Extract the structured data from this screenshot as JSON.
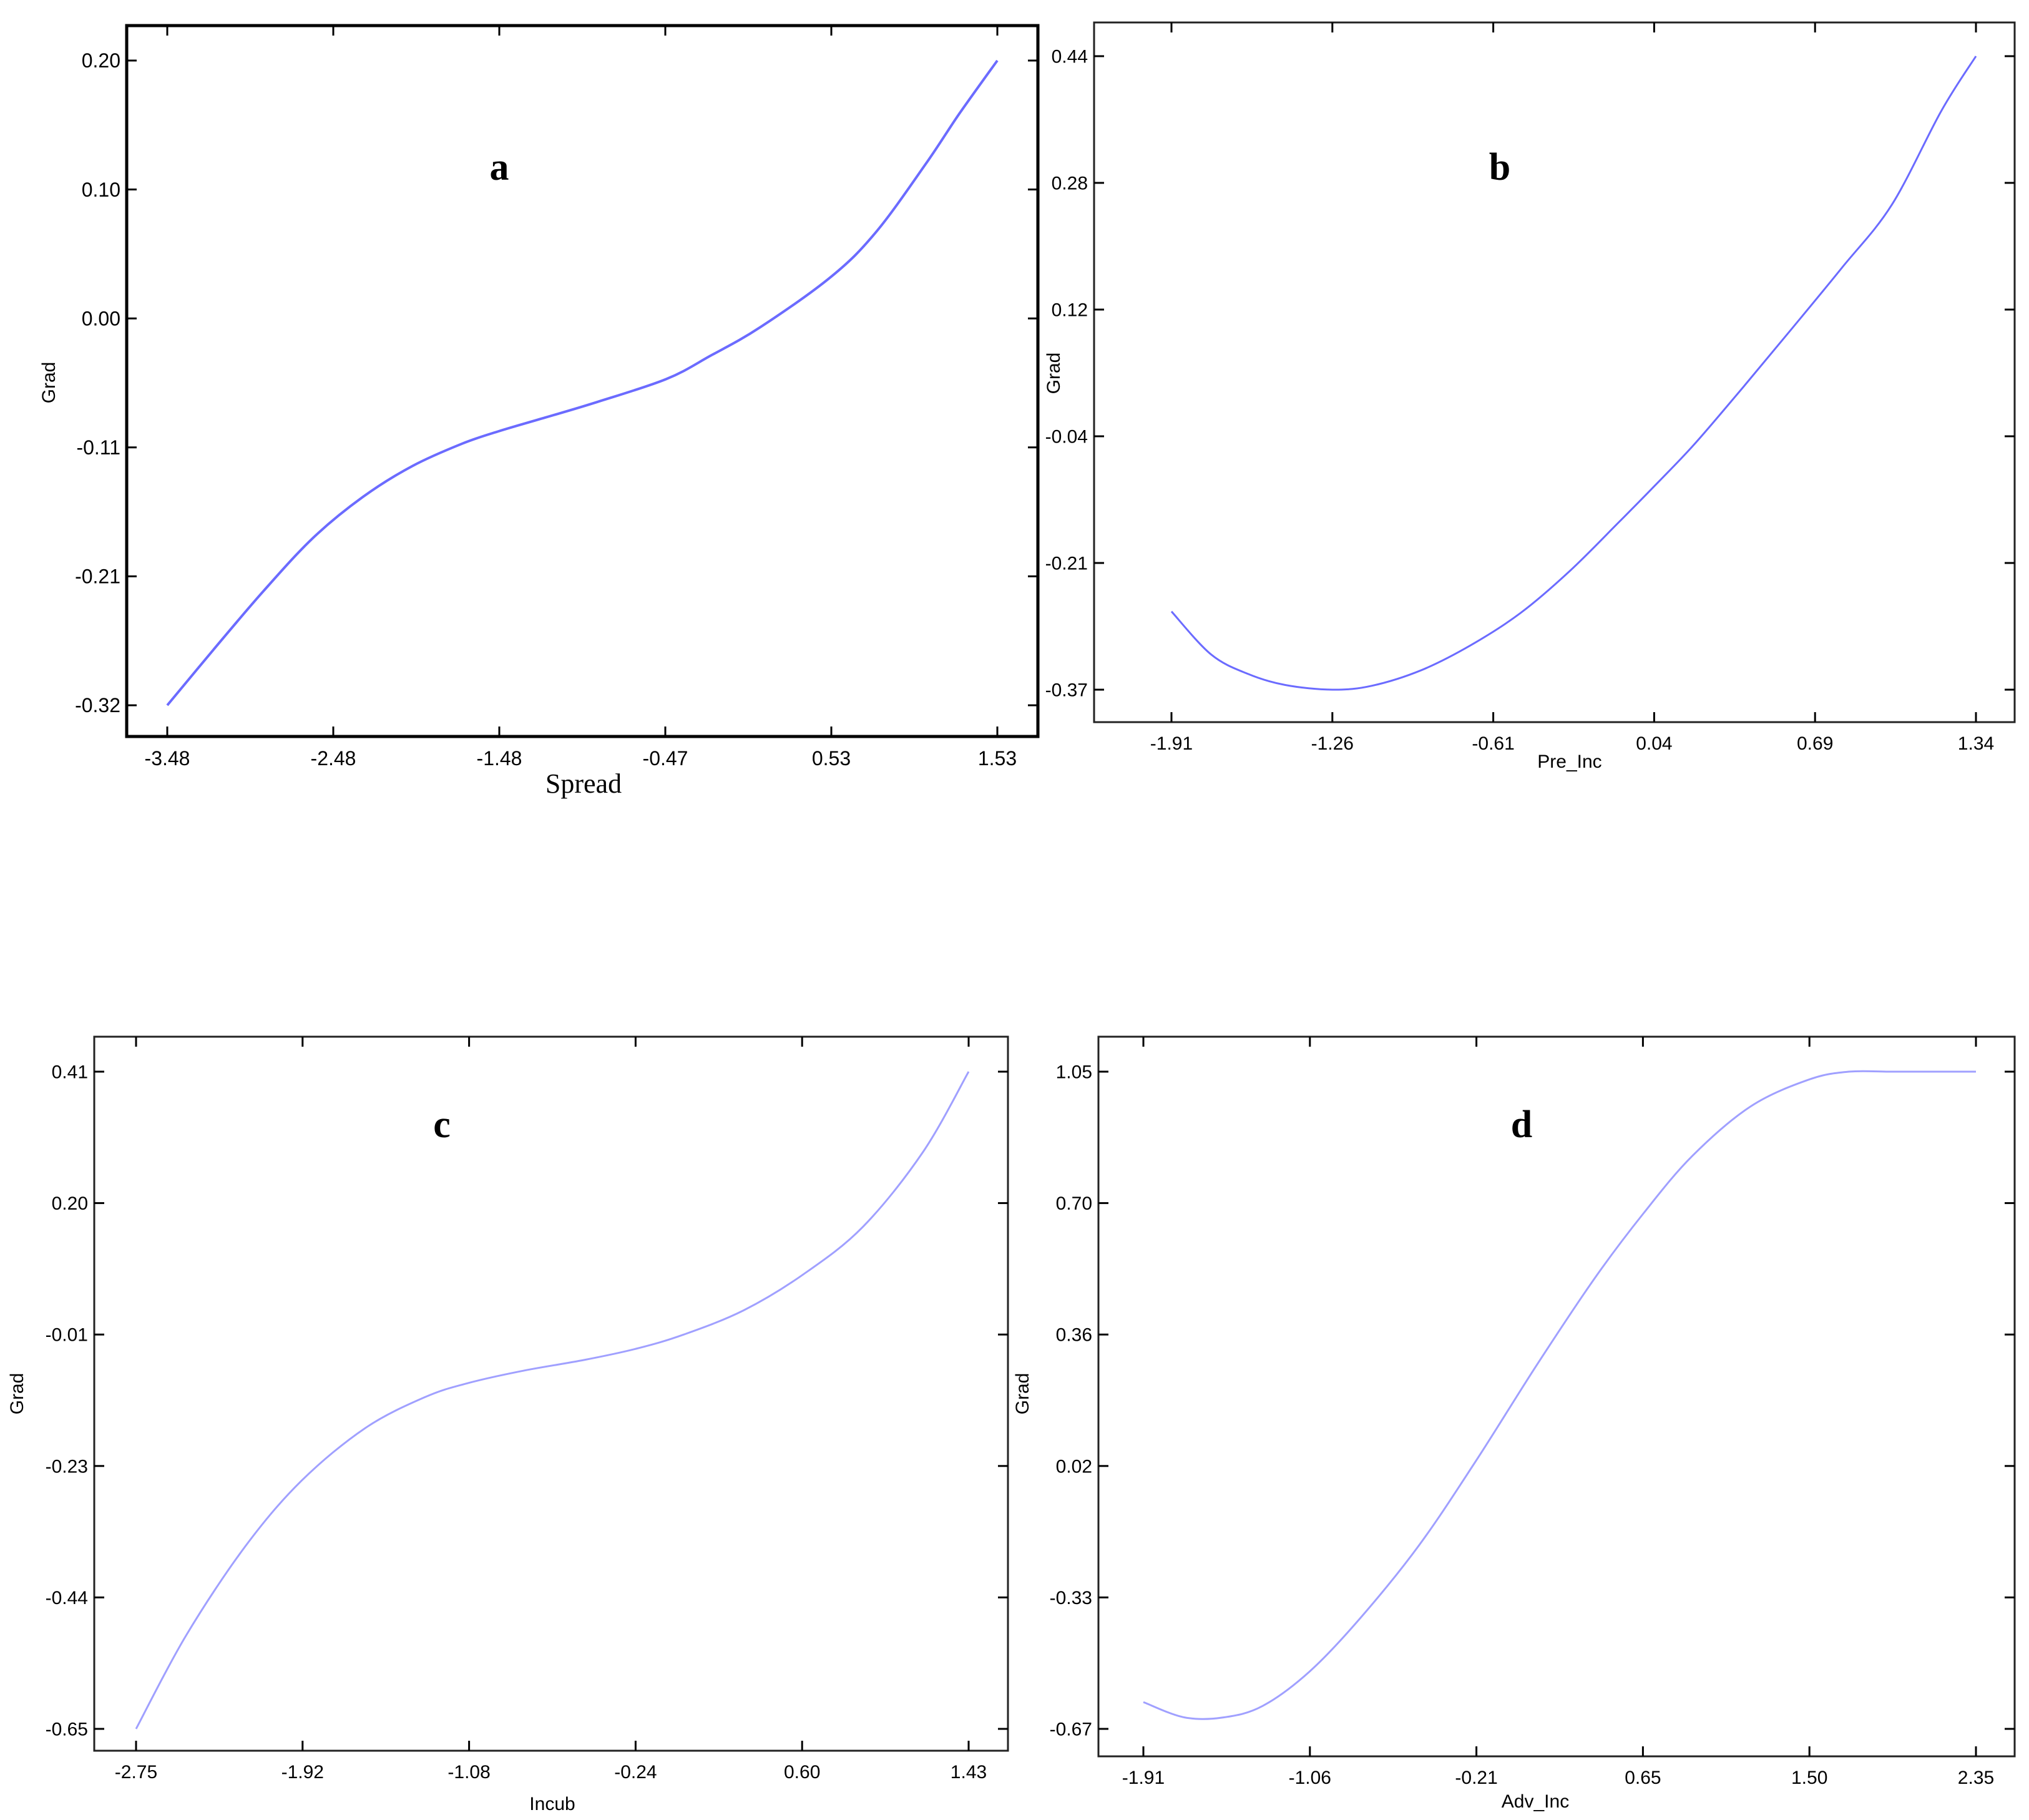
{
  "chart_data": [
    {
      "type": "line",
      "panel_label": "a",
      "xlabel": "Spread",
      "ylabel": "Grad",
      "x_ticks": [
        "-3.48",
        "-2.48",
        "-1.48",
        "-0.47",
        "0.53",
        "1.53"
      ],
      "y_ticks": [
        "-0.32",
        "-0.21",
        "-0.11",
        "0.00",
        "0.10",
        "0.20"
      ],
      "xlim": [
        -3.48,
        1.53
      ],
      "ylim": [
        -0.32,
        0.2
      ],
      "series": [
        {
          "color": "#6b6bff",
          "x": [
            -3.48,
            -3.2,
            -2.9,
            -2.6,
            -2.3,
            -2.0,
            -1.7,
            -1.48,
            -1.2,
            -0.9,
            -0.47,
            -0.2,
            0.1,
            0.53,
            0.8,
            1.1,
            1.3,
            1.53
          ],
          "y": [
            -0.32,
            -0.275,
            -0.228,
            -0.185,
            -0.152,
            -0.127,
            -0.109,
            -0.099,
            -0.088,
            -0.076,
            -0.057,
            -0.038,
            -0.015,
            0.026,
            0.062,
            0.117,
            0.157,
            0.2
          ]
        }
      ],
      "grid": false
    },
    {
      "type": "line",
      "panel_label": "b",
      "xlabel": "Pre_Inc",
      "ylabel": "Grad",
      "x_ticks": [
        "-1.91",
        "-1.26",
        "-0.61",
        "0.04",
        "0.69",
        "1.34"
      ],
      "y_ticks": [
        "-0.37",
        "-0.21",
        "-0.04",
        "0.12",
        "0.28",
        "0.44"
      ],
      "xlim": [
        -1.91,
        1.34
      ],
      "ylim": [
        -0.37,
        0.44
      ],
      "series": [
        {
          "color": "#6b6bff",
          "x": [
            -1.91,
            -1.75,
            -1.6,
            -1.45,
            -1.26,
            -1.1,
            -0.9,
            -0.7,
            -0.5,
            -0.3,
            -0.1,
            0.04,
            0.2,
            0.4,
            0.6,
            0.8,
            1.0,
            1.2,
            1.34
          ],
          "y": [
            -0.27,
            -0.325,
            -0.35,
            -0.364,
            -0.37,
            -0.365,
            -0.345,
            -0.313,
            -0.272,
            -0.218,
            -0.155,
            -0.11,
            -0.057,
            0.017,
            0.093,
            0.17,
            0.25,
            0.37,
            0.44
          ]
        }
      ],
      "grid": false
    },
    {
      "type": "line",
      "panel_label": "c",
      "xlabel": "Incub",
      "ylabel": "Grad",
      "x_ticks": [
        "-2.75",
        "-1.92",
        "-1.08",
        "-0.24",
        "0.60",
        "1.43"
      ],
      "y_ticks": [
        "-0.65",
        "-0.44",
        "-0.23",
        "-0.01",
        "0.20",
        "0.41"
      ],
      "xlim": [
        -2.75,
        1.43
      ],
      "ylim": [
        -0.65,
        0.41
      ],
      "series": [
        {
          "color": "#6b6bff",
          "x": [
            -2.75,
            -2.5,
            -2.2,
            -1.92,
            -1.6,
            -1.3,
            -1.08,
            -0.8,
            -0.5,
            -0.24,
            0.0,
            0.3,
            0.6,
            0.9,
            1.2,
            1.43
          ],
          "y": [
            -0.65,
            -0.5,
            -0.355,
            -0.25,
            -0.165,
            -0.115,
            -0.092,
            -0.072,
            -0.055,
            -0.037,
            -0.014,
            0.025,
            0.083,
            0.16,
            0.28,
            0.41
          ]
        }
      ],
      "grid": false
    },
    {
      "type": "line",
      "panel_label": "d",
      "xlabel": "Adv_Inc",
      "ylabel": "Grad",
      "x_ticks": [
        "-1.91",
        "-1.06",
        "-0.21",
        "0.65",
        "1.50",
        "2.35"
      ],
      "y_ticks": [
        "-0.67",
        "-0.33",
        "0.02",
        "0.36",
        "0.70",
        "1.05"
      ],
      "xlim": [
        -1.91,
        2.35
      ],
      "ylim": [
        -0.67,
        1.05
      ],
      "series": [
        {
          "color": "#6b6bff",
          "x": [
            -1.91,
            -1.7,
            -1.5,
            -1.3,
            -1.06,
            -0.8,
            -0.5,
            -0.21,
            0.1,
            0.4,
            0.65,
            0.9,
            1.2,
            1.5,
            1.7,
            1.9,
            2.0,
            2.35
          ],
          "y": [
            -0.6,
            -0.64,
            -0.64,
            -0.61,
            -0.52,
            -0.38,
            -0.19,
            0.03,
            0.28,
            0.51,
            0.68,
            0.83,
            0.96,
            1.03,
            1.05,
            1.05,
            1.05,
            1.05
          ]
        }
      ],
      "grid": false
    }
  ]
}
